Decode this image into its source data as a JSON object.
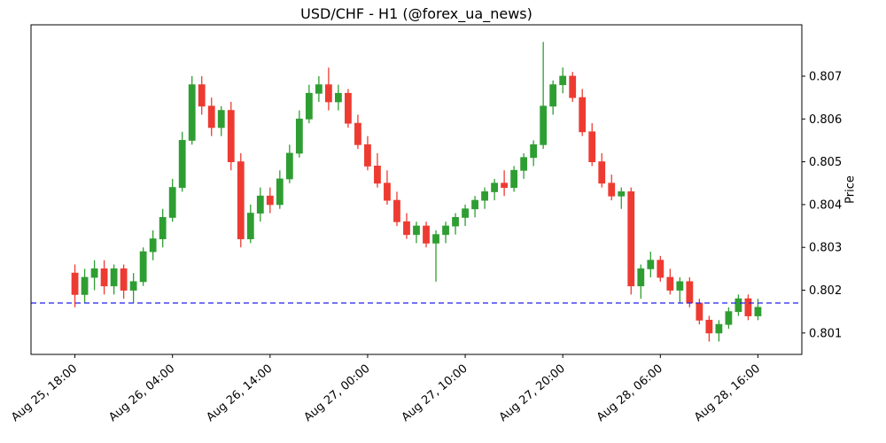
{
  "colors": {
    "up": "#2f9e32",
    "down": "#ee3b32",
    "hline": "#2222ee",
    "frame": "#000000",
    "text": "#000000",
    "background": "#ffffff"
  },
  "chart_data": {
    "type": "candlestick",
    "title": "USD/CHF - H1 (@forex_ua_news)",
    "ylabel": "Price",
    "timeframe": "H1",
    "symbol": "USD/CHF",
    "ylim": [
      0.8005,
      0.8082
    ],
    "hline": 0.8017,
    "y_ticks": [
      0.801,
      0.802,
      0.803,
      0.804,
      0.805,
      0.806,
      0.807
    ],
    "x_ticks": [
      {
        "index": 0,
        "label": "Aug 25, 18:00"
      },
      {
        "index": 10,
        "label": "Aug 26, 04:00"
      },
      {
        "index": 20,
        "label": "Aug 26, 14:00"
      },
      {
        "index": 30,
        "label": "Aug 27, 00:00"
      },
      {
        "index": 40,
        "label": "Aug 27, 10:00"
      },
      {
        "index": 50,
        "label": "Aug 27, 20:00"
      },
      {
        "index": 60,
        "label": "Aug 28, 06:00"
      },
      {
        "index": 70,
        "label": "Aug 28, 16:00"
      }
    ],
    "candle_format": [
      "open",
      "high",
      "low",
      "close"
    ],
    "candles": [
      [
        0.8024,
        0.8026,
        0.8016,
        0.8019
      ],
      [
        0.8019,
        0.8025,
        0.8017,
        0.8023
      ],
      [
        0.8023,
        0.8027,
        0.802,
        0.8025
      ],
      [
        0.8025,
        0.8027,
        0.8019,
        0.8021
      ],
      [
        0.8021,
        0.8026,
        0.8019,
        0.8025
      ],
      [
        0.8025,
        0.8026,
        0.8018,
        0.802
      ],
      [
        0.802,
        0.8024,
        0.8017,
        0.8022
      ],
      [
        0.8022,
        0.803,
        0.8021,
        0.8029
      ],
      [
        0.8029,
        0.8034,
        0.8027,
        0.8032
      ],
      [
        0.8032,
        0.8039,
        0.803,
        0.8037
      ],
      [
        0.8037,
        0.8046,
        0.8036,
        0.8044
      ],
      [
        0.8044,
        0.8057,
        0.8043,
        0.8055
      ],
      [
        0.8055,
        0.807,
        0.8054,
        0.8068
      ],
      [
        0.8068,
        0.807,
        0.8061,
        0.8063
      ],
      [
        0.8063,
        0.8065,
        0.8056,
        0.8058
      ],
      [
        0.8058,
        0.8063,
        0.8056,
        0.8062
      ],
      [
        0.8062,
        0.8064,
        0.8048,
        0.805
      ],
      [
        0.805,
        0.8052,
        0.803,
        0.8032
      ],
      [
        0.8032,
        0.804,
        0.8031,
        0.8038
      ],
      [
        0.8038,
        0.8044,
        0.8036,
        0.8042
      ],
      [
        0.8042,
        0.8044,
        0.8038,
        0.804
      ],
      [
        0.804,
        0.8048,
        0.8039,
        0.8046
      ],
      [
        0.8046,
        0.8054,
        0.8045,
        0.8052
      ],
      [
        0.8052,
        0.8062,
        0.8051,
        0.806
      ],
      [
        0.806,
        0.8068,
        0.8059,
        0.8066
      ],
      [
        0.8066,
        0.807,
        0.8064,
        0.8068
      ],
      [
        0.8068,
        0.8072,
        0.8062,
        0.8064
      ],
      [
        0.8064,
        0.8068,
        0.8062,
        0.8066
      ],
      [
        0.8066,
        0.8067,
        0.8058,
        0.8059
      ],
      [
        0.8059,
        0.8061,
        0.8053,
        0.8054
      ],
      [
        0.8054,
        0.8056,
        0.8048,
        0.8049
      ],
      [
        0.8049,
        0.8052,
        0.8044,
        0.8045
      ],
      [
        0.8045,
        0.8048,
        0.804,
        0.8041
      ],
      [
        0.8041,
        0.8043,
        0.8035,
        0.8036
      ],
      [
        0.8036,
        0.8038,
        0.8032,
        0.8033
      ],
      [
        0.8033,
        0.8036,
        0.8031,
        0.8035
      ],
      [
        0.8035,
        0.8036,
        0.803,
        0.8031
      ],
      [
        0.8031,
        0.8034,
        0.8022,
        0.8033
      ],
      [
        0.8033,
        0.8036,
        0.8031,
        0.8035
      ],
      [
        0.8035,
        0.8038,
        0.8033,
        0.8037
      ],
      [
        0.8037,
        0.804,
        0.8035,
        0.8039
      ],
      [
        0.8039,
        0.8042,
        0.8037,
        0.8041
      ],
      [
        0.8041,
        0.8044,
        0.8039,
        0.8043
      ],
      [
        0.8043,
        0.8046,
        0.8041,
        0.8045
      ],
      [
        0.8045,
        0.8048,
        0.8042,
        0.8044
      ],
      [
        0.8044,
        0.8049,
        0.8043,
        0.8048
      ],
      [
        0.8048,
        0.8052,
        0.8046,
        0.8051
      ],
      [
        0.8051,
        0.8055,
        0.8049,
        0.8054
      ],
      [
        0.8054,
        0.8078,
        0.8053,
        0.8063
      ],
      [
        0.8063,
        0.8069,
        0.8061,
        0.8068
      ],
      [
        0.8068,
        0.8072,
        0.8066,
        0.807
      ],
      [
        0.807,
        0.8071,
        0.8064,
        0.8065
      ],
      [
        0.8065,
        0.8067,
        0.8056,
        0.8057
      ],
      [
        0.8057,
        0.8059,
        0.8049,
        0.805
      ],
      [
        0.805,
        0.8052,
        0.8044,
        0.8045
      ],
      [
        0.8045,
        0.8047,
        0.8041,
        0.8042
      ],
      [
        0.8042,
        0.8044,
        0.8039,
        0.8043
      ],
      [
        0.8043,
        0.8044,
        0.8019,
        0.8021
      ],
      [
        0.8021,
        0.8026,
        0.8018,
        0.8025
      ],
      [
        0.8025,
        0.8029,
        0.8023,
        0.8027
      ],
      [
        0.8027,
        0.8028,
        0.8022,
        0.8023
      ],
      [
        0.8023,
        0.8025,
        0.8019,
        0.802
      ],
      [
        0.802,
        0.8023,
        0.8017,
        0.8022
      ],
      [
        0.8022,
        0.8023,
        0.8016,
        0.8017
      ],
      [
        0.8017,
        0.8018,
        0.8012,
        0.8013
      ],
      [
        0.8013,
        0.8014,
        0.8008,
        0.801
      ],
      [
        0.801,
        0.8013,
        0.8008,
        0.8012
      ],
      [
        0.8012,
        0.8016,
        0.8011,
        0.8015
      ],
      [
        0.8015,
        0.8019,
        0.8014,
        0.8018
      ],
      [
        0.8018,
        0.8019,
        0.8013,
        0.8014
      ],
      [
        0.8014,
        0.8018,
        0.8013,
        0.8016
      ]
    ]
  }
}
